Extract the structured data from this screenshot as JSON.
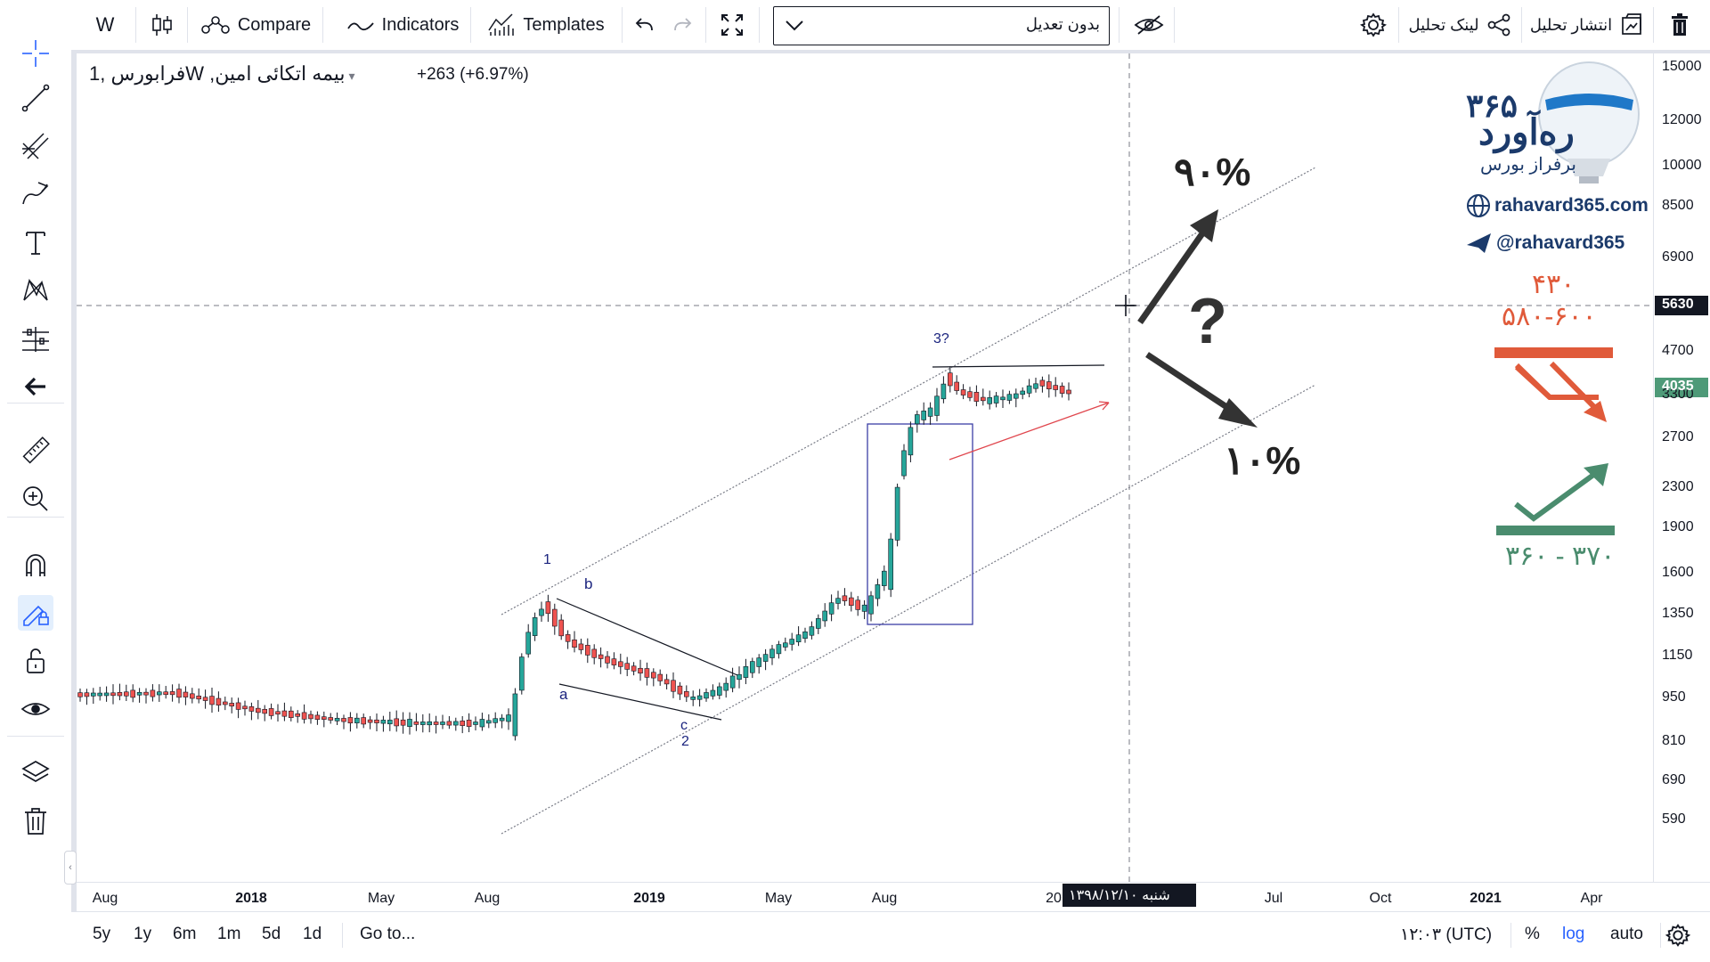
{
  "toolbar": {
    "symbol_short": "W",
    "compare_label": "Compare",
    "indicators_label": "Indicators",
    "templates_label": "Templates",
    "adjust_select_value": "بدون تعدیل",
    "publish_label": "انتشار تحلیل",
    "link_label": "لینک تحلیل"
  },
  "legend": {
    "title": "فرابورس ,1W ,بیمه اتکائی امین",
    "change": "+263 (+6.97%)"
  },
  "price_scale": [
    "15000",
    "12000",
    "10000",
    "8500",
    "6900",
    "4700",
    "3300",
    "2700",
    "2300",
    "1900",
    "1600",
    "1350",
    "1150",
    "950",
    "810",
    "690",
    "590"
  ],
  "crosshair_price": "5630",
  "last_price": "4035",
  "time_scale": [
    "Aug",
    "2018",
    "May",
    "Aug",
    "2019",
    "May",
    "Aug",
    "20",
    "Jul",
    "Oct",
    "2021",
    "Apr"
  ],
  "crosshair_date": "شنبه ۱۳۹۸/۱۲/۱۰",
  "wave_labels": {
    "w1": "1",
    "wb": "b",
    "wa": "a",
    "wc": "c",
    "w2": "2",
    "w3": "3?"
  },
  "annotations": {
    "up_pct": "۹۰%",
    "down_pct": "۱۰%",
    "question": "?",
    "resist1": "۴۳۰",
    "resist2": "۵۸۰-۶۰۰",
    "support": "۳۶۰ - ۳۷۰"
  },
  "brand": {
    "name": "ره‌آورد",
    "num": "۳۶۵",
    "tagline": "برفراز بورس",
    "website": "rahavard365.com",
    "telegram": "@rahavard365"
  },
  "bottom": {
    "ranges": [
      "5y",
      "1y",
      "6m",
      "1m",
      "5d",
      "1d"
    ],
    "goto": "Go to...",
    "time": "۱۲:۰۳ (UTC)",
    "percent": "%",
    "log": "log",
    "auto": "auto"
  },
  "colors": {
    "up": "#26a69a",
    "down": "#ef5350",
    "brand_navy": "#1b3a6b",
    "accent_blue": "#2962ff",
    "arrow_red": "#e05a3a",
    "arrow_green": "#4a8c6e"
  }
}
